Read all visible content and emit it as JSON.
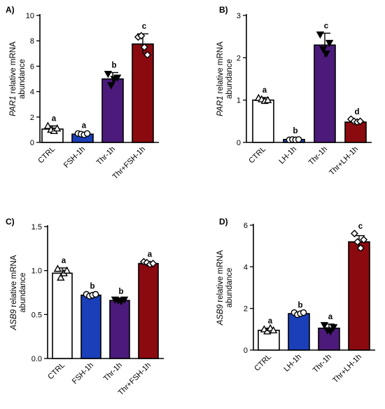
{
  "chart_data": [
    {
      "type": "bar",
      "panel": "A)",
      "ylabel_italic": "PAR1",
      "ylabel_rest": " relative mRNA",
      "ylabel_line2": "abundance",
      "categories": [
        "CTRL",
        "FSH-1h",
        "Thr-1h",
        "Thr+FSH-1h"
      ],
      "values": [
        1.05,
        0.65,
        5.0,
        7.75
      ],
      "errors": [
        0.25,
        0.1,
        0.5,
        0.8
      ],
      "points": [
        [
          1.3,
          1.0,
          0.9,
          1.1
        ],
        [
          0.7,
          0.65,
          0.6,
          0.7
        ],
        [
          5.4,
          4.5,
          5.0,
          5.1
        ],
        [
          8.3,
          8.4,
          7.5,
          6.9
        ]
      ],
      "markers": [
        "triangle",
        "circle",
        "triangle-down",
        "diamond"
      ],
      "colors": [
        "#ffffff",
        "#1a3fb8",
        "#4b1a7a",
        "#8b0a10"
      ],
      "significance": [
        "a",
        "a",
        "b",
        "c"
      ],
      "ylim": [
        0,
        10
      ],
      "yticks": [
        0,
        2,
        4,
        6,
        8,
        10
      ]
    },
    {
      "type": "bar",
      "panel": "B)",
      "ylabel_italic": "PAR1",
      "ylabel_rest": " relative mRNA",
      "ylabel_line2": "abundance",
      "categories": [
        "CTRL",
        "LH-1h",
        "Thr-1h",
        "Thr+LH-1h"
      ],
      "values": [
        1.0,
        0.07,
        2.3,
        0.48
      ],
      "errors": [
        0.06,
        0.03,
        0.28,
        0.05
      ],
      "points": [
        [
          1.05,
          1.02,
          0.98,
          1.0
        ],
        [
          0.06,
          0.07,
          0.06,
          0.07
        ],
        [
          2.55,
          2.2,
          2.1,
          2.35
        ],
        [
          0.55,
          0.5,
          0.48,
          0.5
        ]
      ],
      "markers": [
        "triangle",
        "circle",
        "triangle-down",
        "diamond"
      ],
      "colors": [
        "#ffffff",
        "#1a3fb8",
        "#4b1a7a",
        "#8b0a10"
      ],
      "significance": [
        "a",
        "b",
        "c",
        "d"
      ],
      "ylim": [
        0,
        3
      ],
      "yticks": [
        0,
        1,
        2,
        3
      ]
    },
    {
      "type": "bar",
      "panel": "C)",
      "ylabel_italic": "ASB9",
      "ylabel_rest": " relative mRNA",
      "ylabel_line2": "abundance",
      "categories": [
        "CTRL",
        "FSH-1h",
        "Thr-1h",
        "Thr+FSH-1h"
      ],
      "values": [
        0.97,
        0.72,
        0.66,
        1.08
      ],
      "errors": [
        0.06,
        0.02,
        0.02,
        0.02
      ],
      "points": [
        [
          1.02,
          0.92,
          0.97,
          1.0
        ],
        [
          0.73,
          0.71,
          0.72,
          0.73
        ],
        [
          0.67,
          0.66,
          0.65,
          0.67
        ],
        [
          1.1,
          1.09,
          1.07,
          1.08
        ]
      ],
      "markers": [
        "triangle",
        "circle",
        "triangle-down",
        "diamond"
      ],
      "colors": [
        "#ffffff",
        "#1a3fb8",
        "#4b1a7a",
        "#8b0a10"
      ],
      "significance": [
        "a",
        "b",
        "b",
        "a"
      ],
      "ylim": [
        0,
        1.5
      ],
      "yticks": [
        0.0,
        0.5,
        1.0,
        1.5
      ],
      "ytick_labels": [
        "0.0",
        "0.5",
        "1.0",
        "1.5"
      ]
    },
    {
      "type": "bar",
      "panel": "D)",
      "ylabel_italic": "ASB9",
      "ylabel_rest": " relative mRNA",
      "ylabel_line2": "abundance",
      "categories": [
        "CTRL",
        "LH-1h",
        "Thr-1h",
        "Thr+LH-1h"
      ],
      "values": [
        0.95,
        1.75,
        1.05,
        5.2
      ],
      "errors": [
        0.1,
        0.05,
        0.2,
        0.3
      ],
      "points": [
        [
          1.0,
          0.9,
          1.05,
          0.95
        ],
        [
          1.8,
          1.7,
          1.75,
          1.8
        ],
        [
          1.2,
          0.95,
          0.9,
          1.1
        ],
        [
          5.6,
          5.2,
          4.9,
          5.3
        ]
      ],
      "markers": [
        "triangle",
        "circle",
        "triangle-down",
        "diamond"
      ],
      "colors": [
        "#ffffff",
        "#1a3fb8",
        "#4b1a7a",
        "#8b0a10"
      ],
      "significance": [
        "a",
        "b",
        "a",
        "c"
      ],
      "ylim": [
        0,
        6
      ],
      "yticks": [
        0,
        2,
        4,
        6
      ]
    }
  ]
}
